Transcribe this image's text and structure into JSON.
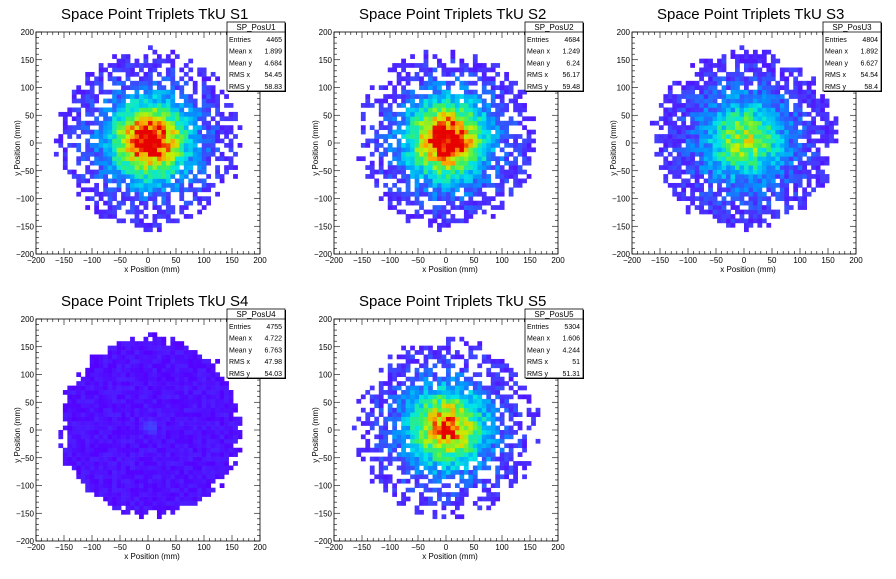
{
  "chart_data": [
    {
      "type": "heatmap",
      "title": "Space Point Triplets TkU S1",
      "xlabel": "x Position (mm)",
      "ylabel": "y Position (mm)",
      "xlim": [
        -200,
        200
      ],
      "ylim": [
        -200,
        200
      ],
      "xticks": [
        "−200",
        "−150",
        "−100",
        "−50",
        "0",
        "50",
        "100",
        "150",
        "200"
      ],
      "yticks": [
        "200",
        "150",
        "100",
        "50",
        "0",
        "−50",
        "−100",
        "−150",
        "−200"
      ],
      "stats": {
        "name": "SP_PosU1",
        "rows": [
          {
            "label": "Entries",
            "value": "4465"
          },
          {
            "label": "Mean x",
            "value": "1.899"
          },
          {
            "label": "Mean y",
            "value": "4.684"
          },
          {
            "label": "RMS x",
            "value": "54.45"
          },
          {
            "label": "RMS y",
            "value": "58.83"
          }
        ]
      },
      "entries": 4465,
      "mean_x": 1.899,
      "mean_y": 4.684,
      "rms_x": 54.45,
      "rms_y": 58.83,
      "core": 1.0,
      "halo": 0.15
    },
    {
      "type": "heatmap",
      "title": "Space Point Triplets TkU S2",
      "xlabel": "x Position (mm)",
      "ylabel": "y Position (mm)",
      "xlim": [
        -200,
        200
      ],
      "ylim": [
        -200,
        200
      ],
      "xticks": [
        "−200",
        "−150",
        "−100",
        "−50",
        "0",
        "50",
        "100",
        "150",
        "200"
      ],
      "yticks": [
        "200",
        "150",
        "100",
        "50",
        "0",
        "−50",
        "−100",
        "−150",
        "−200"
      ],
      "stats": {
        "name": "SP_PosU2",
        "rows": [
          {
            "label": "Entries",
            "value": "4684"
          },
          {
            "label": "Mean x",
            "value": "1.249"
          },
          {
            "label": "Mean y",
            "value": "6.24"
          },
          {
            "label": "RMS x",
            "value": "56.17"
          },
          {
            "label": "RMS y",
            "value": "59.48"
          }
        ]
      },
      "entries": 4684,
      "mean_x": 1.249,
      "mean_y": 6.24,
      "rms_x": 56.17,
      "rms_y": 59.48,
      "core": 1.0,
      "halo": 0.15
    },
    {
      "type": "heatmap",
      "title": "Space Point Triplets TkU S3",
      "xlabel": "x Position (mm)",
      "ylabel": "y Position (mm)",
      "xlim": [
        -200,
        200
      ],
      "ylim": [
        -200,
        200
      ],
      "xticks": [
        "−200",
        "−150",
        "−100",
        "−50",
        "0",
        "50",
        "100",
        "150",
        "200"
      ],
      "yticks": [
        "200",
        "150",
        "100",
        "50",
        "0",
        "−50",
        "−100",
        "−150",
        "−200"
      ],
      "stats": {
        "name": "SP_PosU3",
        "rows": [
          {
            "label": "Entries",
            "value": "4804"
          },
          {
            "label": "Mean x",
            "value": "1.892"
          },
          {
            "label": "Mean y",
            "value": "6.627"
          },
          {
            "label": "RMS x",
            "value": "54.54"
          },
          {
            "label": "RMS y",
            "value": "58.4"
          }
        ]
      },
      "entries": 4804,
      "mean_x": 1.892,
      "mean_y": 6.627,
      "rms_x": 54.54,
      "rms_y": 58.4,
      "core": 0.55,
      "halo": 0.35
    },
    {
      "type": "heatmap",
      "title": "Space Point Triplets TkU S4",
      "xlabel": "x Position (mm)",
      "ylabel": "y Position (mm)",
      "xlim": [
        -200,
        200
      ],
      "ylim": [
        -200,
        200
      ],
      "xticks": [
        "−200",
        "−150",
        "−100",
        "−50",
        "0",
        "50",
        "100",
        "150",
        "200"
      ],
      "yticks": [
        "200",
        "150",
        "100",
        "50",
        "0",
        "−50",
        "−100",
        "−150",
        "−200"
      ],
      "stats": {
        "name": "SP_PosU4",
        "rows": [
          {
            "label": "Entries",
            "value": "4755"
          },
          {
            "label": "Mean x",
            "value": "4.722"
          },
          {
            "label": "Mean y",
            "value": "6.763"
          },
          {
            "label": "RMS x",
            "value": "47.98"
          },
          {
            "label": "RMS y",
            "value": "54.03"
          }
        ]
      },
      "entries": 4755,
      "mean_x": 4.722,
      "mean_y": 6.763,
      "rms_x": 47.98,
      "rms_y": 54.03,
      "core": 0.12,
      "halo": 0.85
    },
    {
      "type": "heatmap",
      "title": "Space Point Triplets TkU S5",
      "xlabel": "x Position (mm)",
      "ylabel": "y Position (mm)",
      "xlim": [
        -200,
        200
      ],
      "ylim": [
        -200,
        200
      ],
      "xticks": [
        "−200",
        "−150",
        "−100",
        "−50",
        "0",
        "50",
        "100",
        "150",
        "200"
      ],
      "yticks": [
        "200",
        "150",
        "100",
        "50",
        "0",
        "−50",
        "−100",
        "−150",
        "−200"
      ],
      "stats": {
        "name": "SP_PosU5",
        "rows": [
          {
            "label": "Entries",
            "value": "5304"
          },
          {
            "label": "Mean x",
            "value": "1.606"
          },
          {
            "label": "Mean y",
            "value": "4.244"
          },
          {
            "label": "RMS x",
            "value": "51"
          },
          {
            "label": "RMS y",
            "value": "51.31"
          }
        ]
      },
      "entries": 5304,
      "mean_x": 1.606,
      "mean_y": 4.244,
      "rms_x": 51,
      "rms_y": 51.31,
      "core": 0.8,
      "halo": 0.1
    }
  ]
}
